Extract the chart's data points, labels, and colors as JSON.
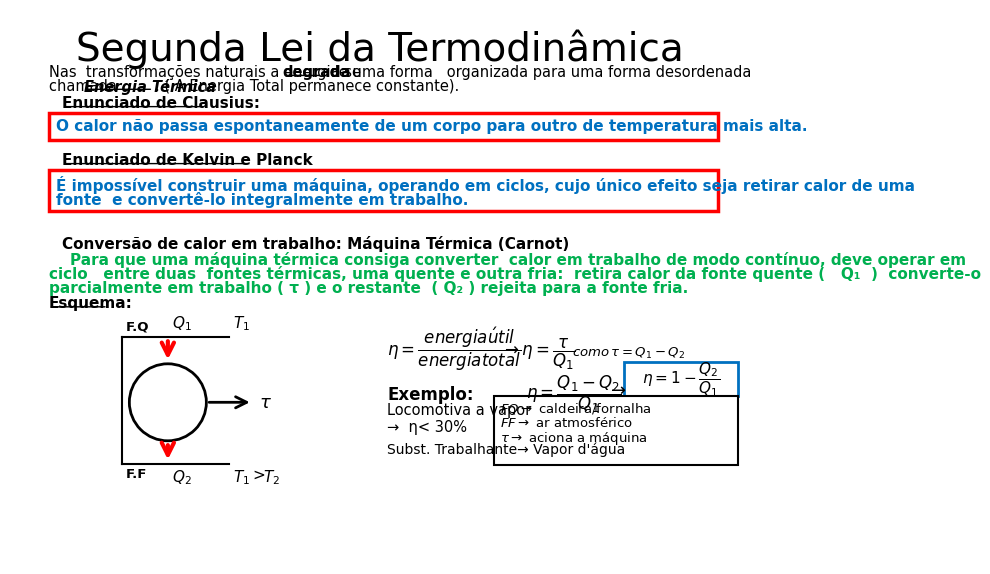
{
  "title": "Segunda Lei da Termodinâmica",
  "title_fontsize": 28,
  "bg_color": "#ffffff",
  "text_color": "#000000",
  "blue_color": "#0070C0",
  "green_color": "#00B050",
  "red_color": "#FF0000",
  "para1_line1": "Nas  transformações naturais a energia se ",
  "para1_bold": "degrada",
  "para1_line1b": " de uma forma   organizada para uma forma desordenada",
  "para1_line2a": "chamada ",
  "para1_bold2": "Energia Térmica",
  "para1_line2b": ". ( A Energia Total permanece constante).",
  "clausius_label": "Enunciado de Clausius:",
  "clausius_text": "O calor não passa espontaneamente de um corpo para outro de temperatura mais alta.",
  "kelvin_label": "Enunciado de Kelvin e Planck",
  "kelvin_text1": "É impossível construir uma máquina, operando em ciclos, cujo único efeito seja retirar calor de uma",
  "kelvin_text2": "fonte  e convertê-lo integralmente em trabalho.",
  "carnot_label": "Conversão de calor em trabalho: Máquina Térmica (Carnot)",
  "carnot_para1": "    Para que uma máquina térmica consiga converter  calor em trabalho de modo contínuo, deve operar em",
  "carnot_para2": "ciclo   entre duas  fontes térmicas, uma quente e outra fria:  retira calor da fonte quente (   Q₁  )  converte-o",
  "carnot_para3": "parcialmente em trabalho ( τ ) e o restante  ( Q₂ ) rejeita para a fonte fria.",
  "esquema_label": "Esquema:",
  "exemplo_label": "Exemplo:",
  "loco_text": "Locomotiva a vapor",
  "eff_text": "→  η< 30%",
  "subst_text": "Subst. Trabalhante→ Vapor d'água",
  "fq_label": "F.Q",
  "ff_label": "F.F"
}
